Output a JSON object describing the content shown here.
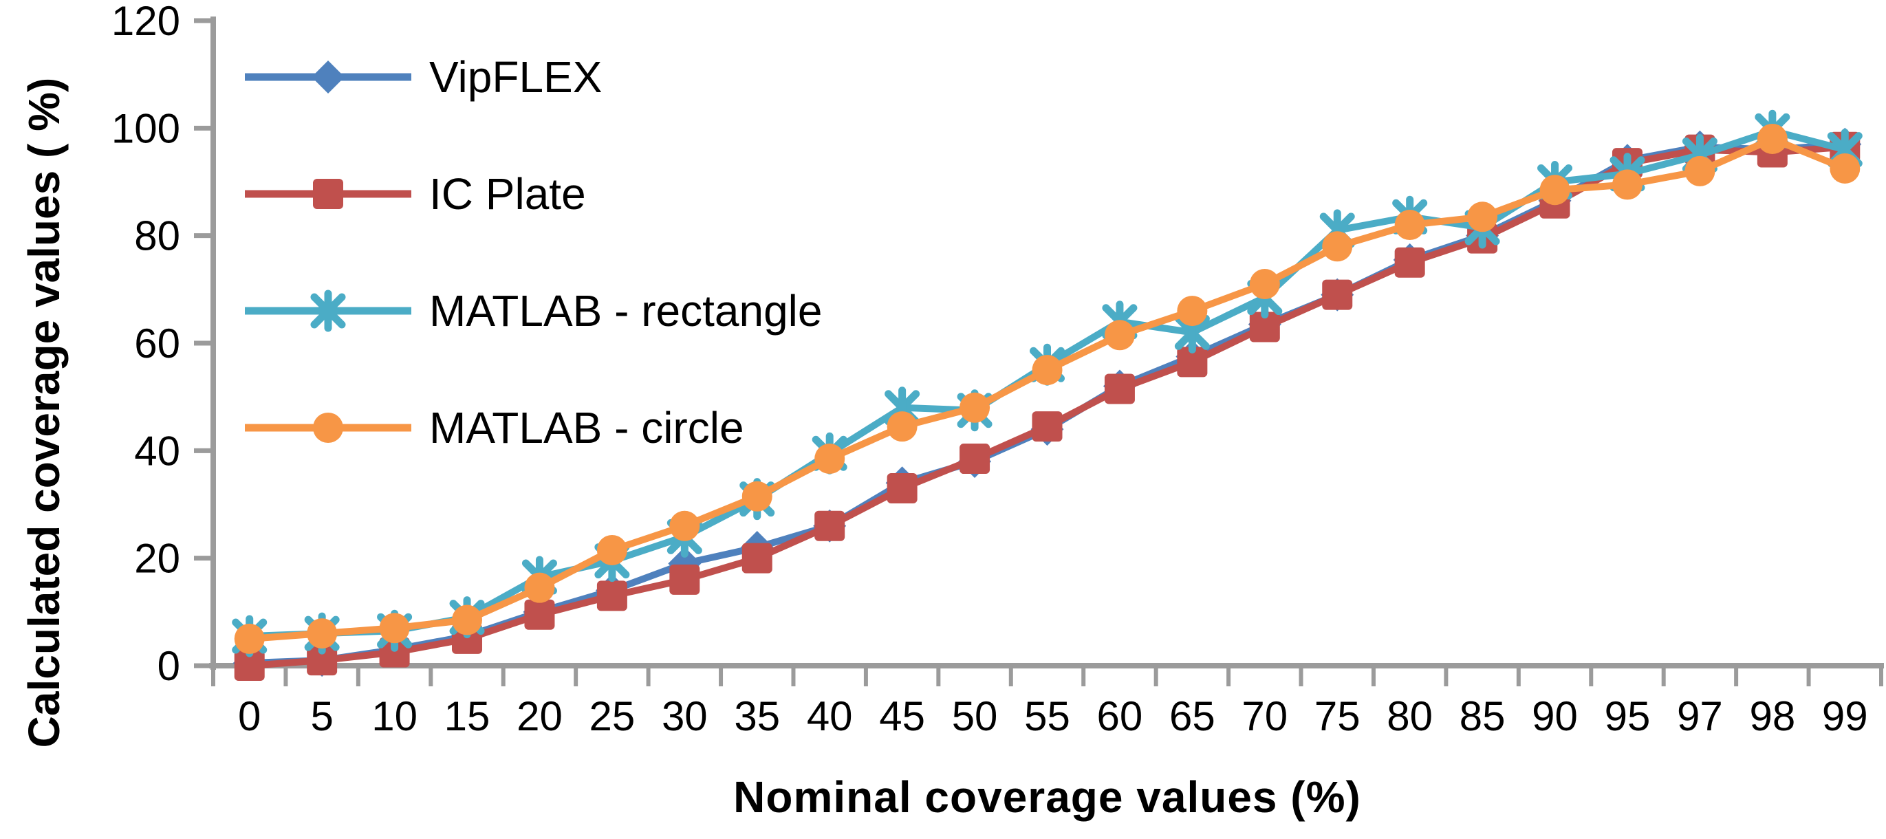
{
  "chart_data": {
    "type": "line",
    "title": "",
    "xlabel": "Nominal coverage values  (%)",
    "ylabel": "Calculated coverage values ( %)",
    "categories": [
      0,
      5,
      10,
      15,
      20,
      25,
      30,
      35,
      40,
      45,
      50,
      55,
      60,
      65,
      70,
      75,
      80,
      85,
      90,
      95,
      97,
      98,
      99
    ],
    "x_tick_labels": [
      "0",
      "5",
      "10",
      "15",
      "20",
      "25",
      "30",
      "35",
      "40",
      "45",
      "50",
      "55",
      "60",
      "65",
      "70",
      "75",
      "80",
      "85",
      "90",
      "95",
      "97",
      "98",
      "99"
    ],
    "y_ticks": [
      0,
      20,
      40,
      60,
      80,
      100,
      120
    ],
    "ylim": [
      0,
      120
    ],
    "grid": false,
    "legend_position": "upper-left-inside",
    "axis_color": "#9B9B9B",
    "text_color": "#000000",
    "series": [
      {
        "name": "VipFLEX",
        "color": "#4F81BD",
        "marker": "diamond",
        "values": [
          0.5,
          1,
          3,
          5.5,
          10,
          14,
          19,
          22,
          26,
          34,
          38,
          44,
          52,
          57.5,
          63.5,
          69,
          75.5,
          80,
          86.5,
          94,
          96.5,
          96,
          97
        ]
      },
      {
        "name": "IC Plate",
        "color": "#C0504D",
        "marker": "square",
        "values": [
          0,
          1,
          2.5,
          5,
          9.5,
          13,
          16,
          20,
          26,
          33,
          38.5,
          44.5,
          51.5,
          56.5,
          63,
          69,
          75,
          79.5,
          86,
          93.5,
          96,
          95.5,
          96.5
        ]
      },
      {
        "name": "MATLAB - rectangle",
        "color": "#4BACC6",
        "marker": "star",
        "values": [
          5.5,
          6,
          6.5,
          9,
          16.5,
          19.5,
          24,
          31,
          39.5,
          48,
          47.5,
          56,
          64,
          62,
          68.5,
          81,
          83.5,
          81.5,
          90,
          91.5,
          95,
          99.5,
          96
        ]
      },
      {
        "name": "MATLAB - circle",
        "color": "#F79646",
        "marker": "circle",
        "values": [
          5,
          6,
          7,
          8.5,
          14.5,
          21.5,
          26,
          31.5,
          38.5,
          44.5,
          48,
          55,
          61.5,
          66,
          71,
          78,
          82,
          83.5,
          88.5,
          89.5,
          92,
          98,
          92.5
        ]
      }
    ]
  }
}
